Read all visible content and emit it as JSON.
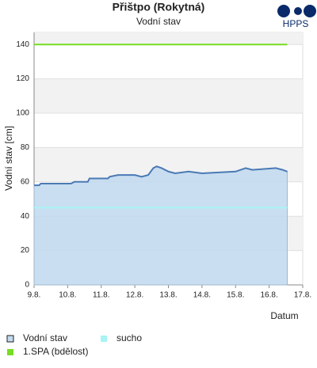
{
  "chart_data": {
    "type": "line",
    "title": "Přištpo (Rokytná)",
    "subtitle": "Vodní stav",
    "logo": "HPPS",
    "ylabel": "Vodní stav [cm]",
    "xlabel": "Datum",
    "xlim": [
      9,
      17
    ],
    "xticks": [
      {
        "value": 9,
        "label": "9.8."
      },
      {
        "value": 10,
        "label": "10.8."
      },
      {
        "value": 11,
        "label": "11.8."
      },
      {
        "value": 12,
        "label": "12.8."
      },
      {
        "value": 13,
        "label": "13.8."
      },
      {
        "value": 14,
        "label": "14.8."
      },
      {
        "value": 15,
        "label": "15.8."
      },
      {
        "value": 16,
        "label": "16.8."
      },
      {
        "value": 17,
        "label": "17.8."
      }
    ],
    "ylim": [
      0,
      147
    ],
    "yticks": [
      0,
      20,
      40,
      60,
      80,
      100,
      120,
      140
    ],
    "grid": true,
    "series": [
      {
        "name": "Vodní stav",
        "color": "#4a7ab5",
        "fill": "#c3daf0",
        "area": true,
        "x": [
          9,
          9.15,
          9.2,
          10.1,
          10.2,
          10.6,
          10.65,
          11.2,
          11.25,
          11.5,
          12.0,
          12.2,
          12.4,
          12.55,
          12.65,
          12.8,
          13.0,
          13.2,
          13.6,
          14.0,
          15.0,
          15.3,
          15.5,
          16.2,
          16.4,
          16.54
        ],
        "values": [
          58,
          58,
          59,
          59,
          60,
          60,
          62,
          62,
          63,
          64,
          64,
          63,
          64,
          68,
          69,
          68,
          66,
          65,
          66,
          65,
          66,
          68,
          67,
          68,
          67,
          66
        ]
      },
      {
        "name": "sucho",
        "color": "#a8f4f4",
        "x": [
          9,
          16.54
        ],
        "values": [
          45,
          45
        ]
      },
      {
        "name": "1.SPA (bdělost)",
        "color": "#77dd22",
        "x": [
          9,
          16.54
        ],
        "values": [
          140,
          140
        ]
      }
    ]
  }
}
